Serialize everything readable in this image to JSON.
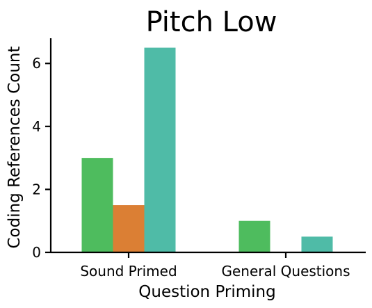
{
  "chart_data": {
    "type": "bar",
    "title": "Pitch Low",
    "xlabel": "Question Priming",
    "ylabel": "Coding References Count",
    "categories": [
      "Sound Primed",
      "General Questions"
    ],
    "series": [
      {
        "color": "#4ebc5e",
        "values": [
          3.0,
          1.0
        ]
      },
      {
        "color": "#db7f34",
        "values": [
          1.5,
          0
        ]
      },
      {
        "color": "#4fbba7",
        "values": [
          6.5,
          0.5
        ]
      }
    ],
    "ylim": [
      0,
      6.8
    ],
    "yticks": [
      0,
      2,
      4,
      6
    ],
    "grid": false,
    "legend": "none"
  }
}
